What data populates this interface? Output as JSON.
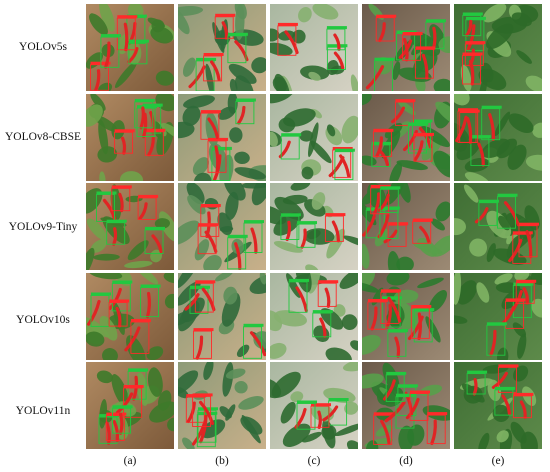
{
  "figure": {
    "row_labels": [
      "YOLOv5s",
      "YOLOv8-CBSE",
      "YOLOv9-Tiny",
      "YOLOv10s",
      "YOLOv11n"
    ],
    "column_labels": [
      "(a)",
      "(b)",
      "(c)",
      "(d)",
      "(e)"
    ],
    "colors": {
      "pepper_red": "#e02424",
      "leaf_green": "#3f7a2e",
      "soil_brown": "#9a7452",
      "box_green": "#22c840",
      "box_red": "#ff2a2a"
    }
  }
}
